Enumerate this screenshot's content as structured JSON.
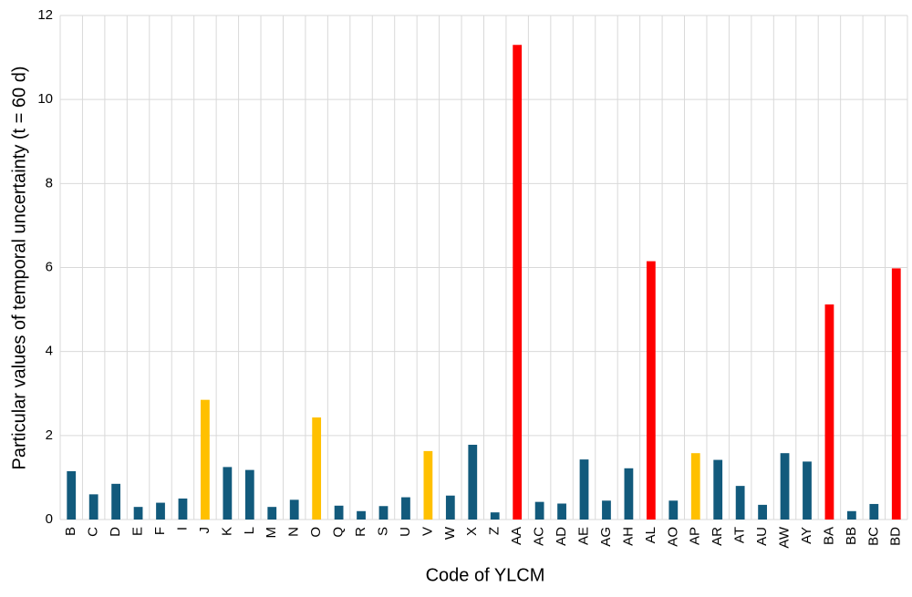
{
  "chart_data": {
    "type": "bar",
    "x_label": "Code of YLCM",
    "y_label": "Particular values of temporal uncertainty (t = 60 d)",
    "categories": [
      "B",
      "C",
      "D",
      "E",
      "F",
      "I",
      "J",
      "K",
      "L",
      "M",
      "N",
      "O",
      "Q",
      "R",
      "S",
      "U",
      "V",
      "W",
      "X",
      "Z",
      "AA",
      "AC",
      "AD",
      "AE",
      "AG",
      "AH",
      "AL",
      "AO",
      "AP",
      "AR",
      "AT",
      "AU",
      "AW",
      "AY",
      "BA",
      "BB",
      "BC",
      "BD"
    ],
    "values": [
      1.15,
      0.6,
      0.85,
      0.3,
      0.4,
      0.5,
      2.85,
      1.25,
      1.18,
      0.3,
      0.47,
      2.43,
      0.33,
      0.2,
      0.32,
      0.53,
      1.63,
      0.57,
      1.78,
      0.17,
      11.3,
      0.42,
      0.38,
      1.43,
      0.45,
      1.22,
      6.15,
      0.45,
      1.58,
      1.42,
      0.8,
      0.35,
      1.58,
      1.38,
      5.12,
      0.2,
      0.37,
      5.98
    ],
    "colors": [
      "#125a7c",
      "#125a7c",
      "#125a7c",
      "#125a7c",
      "#125a7c",
      "#125a7c",
      "#ffc000",
      "#125a7c",
      "#125a7c",
      "#125a7c",
      "#125a7c",
      "#ffc000",
      "#125a7c",
      "#125a7c",
      "#125a7c",
      "#125a7c",
      "#ffc000",
      "#125a7c",
      "#125a7c",
      "#125a7c",
      "#ff0000",
      "#125a7c",
      "#125a7c",
      "#125a7c",
      "#125a7c",
      "#125a7c",
      "#ff0000",
      "#125a7c",
      "#ffc000",
      "#125a7c",
      "#125a7c",
      "#125a7c",
      "#125a7c",
      "#125a7c",
      "#ff0000",
      "#125a7c",
      "#125a7c",
      "#ff0000"
    ],
    "ylim": [
      0,
      12
    ],
    "yticks": [
      0,
      2,
      4,
      6,
      8,
      10,
      12
    ],
    "grid": true
  }
}
